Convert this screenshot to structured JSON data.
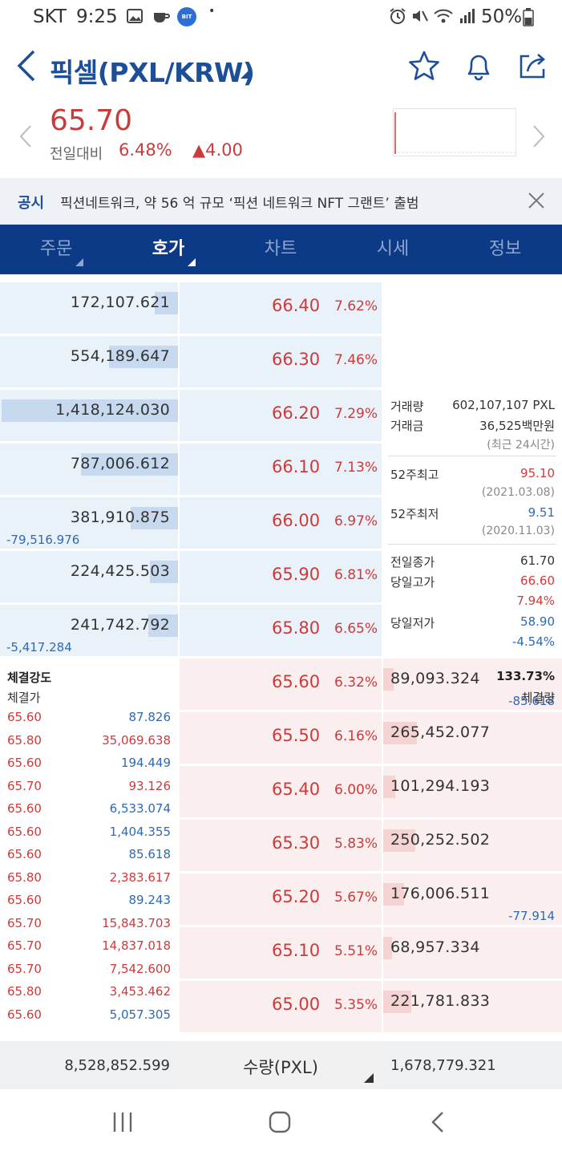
{
  "status_bar": {
    "carrier": "SKT",
    "time": "9:25",
    "coin_label": "BIT",
    "dot": "•",
    "battery": "50%"
  },
  "header": {
    "title": "픽셀(PXL/KRW)"
  },
  "price": {
    "current": "65.70",
    "prev_label": "전일대비",
    "change_pct": "6.48%",
    "change_abs": "▲4.00"
  },
  "notice": {
    "label": "공시",
    "text": "픽션네트워크, 약 56 억 규모 ‘픽션 네트워크 NFT 그랜트’ 출범"
  },
  "tabs": [
    {
      "label": "주문",
      "caret": true
    },
    {
      "label": "호가",
      "caret": true,
      "active": true
    },
    {
      "label": "차트"
    },
    {
      "label": "시세"
    },
    {
      "label": "정보"
    }
  ],
  "asks": [
    {
      "qty": "172,107.621",
      "bar": 0.13,
      "price": "66.40",
      "pct": "7.62%"
    },
    {
      "qty": "554,189.647",
      "bar": 0.39,
      "price": "66.30",
      "pct": "7.46%"
    },
    {
      "qty": "1,418,124.030",
      "bar": 1.0,
      "price": "66.20",
      "pct": "7.29%"
    },
    {
      "qty": "787,006.612",
      "bar": 0.55,
      "price": "66.10",
      "pct": "7.13%"
    },
    {
      "qty": "381,910.875",
      "bar": 0.27,
      "price": "66.00",
      "pct": "6.97%",
      "change": "-79,516.976"
    },
    {
      "qty": "224,425.503",
      "bar": 0.16,
      "price": "65.90",
      "pct": "6.81%"
    },
    {
      "qty": "241,742.792",
      "bar": 0.17,
      "price": "65.80",
      "pct": "6.65%",
      "change": "-5,417.284"
    }
  ],
  "bids": [
    {
      "qty": "89,093.324",
      "bar": 0.06,
      "price": "65.60",
      "pct": "6.32%",
      "change": "-85.618"
    },
    {
      "qty": "265,452.077",
      "bar": 0.19,
      "price": "65.50",
      "pct": "6.16%"
    },
    {
      "qty": "101,294.193",
      "bar": 0.07,
      "price": "65.40",
      "pct": "6.00%"
    },
    {
      "qty": "250,252.502",
      "bar": 0.18,
      "price": "65.30",
      "pct": "5.83%"
    },
    {
      "qty": "176,006.511",
      "bar": 0.12,
      "price": "65.20",
      "pct": "5.67%",
      "change": "-77.914"
    },
    {
      "qty": "68,957.334",
      "bar": 0.05,
      "price": "65.10",
      "pct": "5.51%"
    },
    {
      "qty": "221,781.833",
      "bar": 0.16,
      "price": "65.00",
      "pct": "5.35%"
    }
  ],
  "info": {
    "volume_label": "거래량",
    "volume": "602,107,107 PXL",
    "amount_label": "거래금",
    "amount": "36,525백만원",
    "period": "(최근 24시간)",
    "high52_label": "52주최고",
    "high52": "95.10",
    "high52_date": "(2021.03.08)",
    "low52_label": "52주최저",
    "low52": "9.51",
    "low52_date": "(2020.11.03)",
    "prev_close_label": "전일종가",
    "prev_close": "61.70",
    "day_high_label": "당일고가",
    "day_high": "66.60",
    "day_high_pct": "7.94%",
    "day_low_label": "당일저가",
    "day_low": "58.90",
    "day_low_pct": "-4.54%"
  },
  "trades": {
    "strength_label": "체결강도",
    "strength": "133.73%",
    "price_label": "체결가",
    "volume_label": "체결량",
    "rows": [
      {
        "price": "65.60",
        "volume": "87.826",
        "side": "blue"
      },
      {
        "price": "65.80",
        "volume": "35,069.638",
        "side": "red"
      },
      {
        "price": "65.60",
        "volume": "194.449",
        "side": "blue"
      },
      {
        "price": "65.70",
        "volume": "93.126",
        "side": "red"
      },
      {
        "price": "65.60",
        "volume": "6,533.074",
        "side": "blue"
      },
      {
        "price": "65.60",
        "volume": "1,404.355",
        "side": "blue"
      },
      {
        "price": "65.60",
        "volume": "85.618",
        "side": "blue"
      },
      {
        "price": "65.80",
        "volume": "2,383.617",
        "side": "red"
      },
      {
        "price": "65.60",
        "volume": "89.243",
        "side": "blue"
      },
      {
        "price": "65.70",
        "volume": "15,843.703",
        "side": "red"
      },
      {
        "price": "65.70",
        "volume": "14,837.018",
        "side": "red"
      },
      {
        "price": "65.70",
        "volume": "7,542.600",
        "side": "red"
      },
      {
        "price": "65.80",
        "volume": "3,453.462",
        "side": "red"
      },
      {
        "price": "65.60",
        "volume": "5,057.305",
        "side": "blue"
      }
    ]
  },
  "totals": {
    "ask_total": "8,528,852.599",
    "unit_label": "수량(PXL)",
    "bid_total": "1,678,779.321"
  },
  "colors": {
    "brand": "#1d4f99",
    "tab_bar": "#0d3a86",
    "up": "#cc3b3b",
    "down": "#2d6ab3",
    "ask_bg": "#e9f1f9",
    "bid_bg": "#fbeeee"
  }
}
